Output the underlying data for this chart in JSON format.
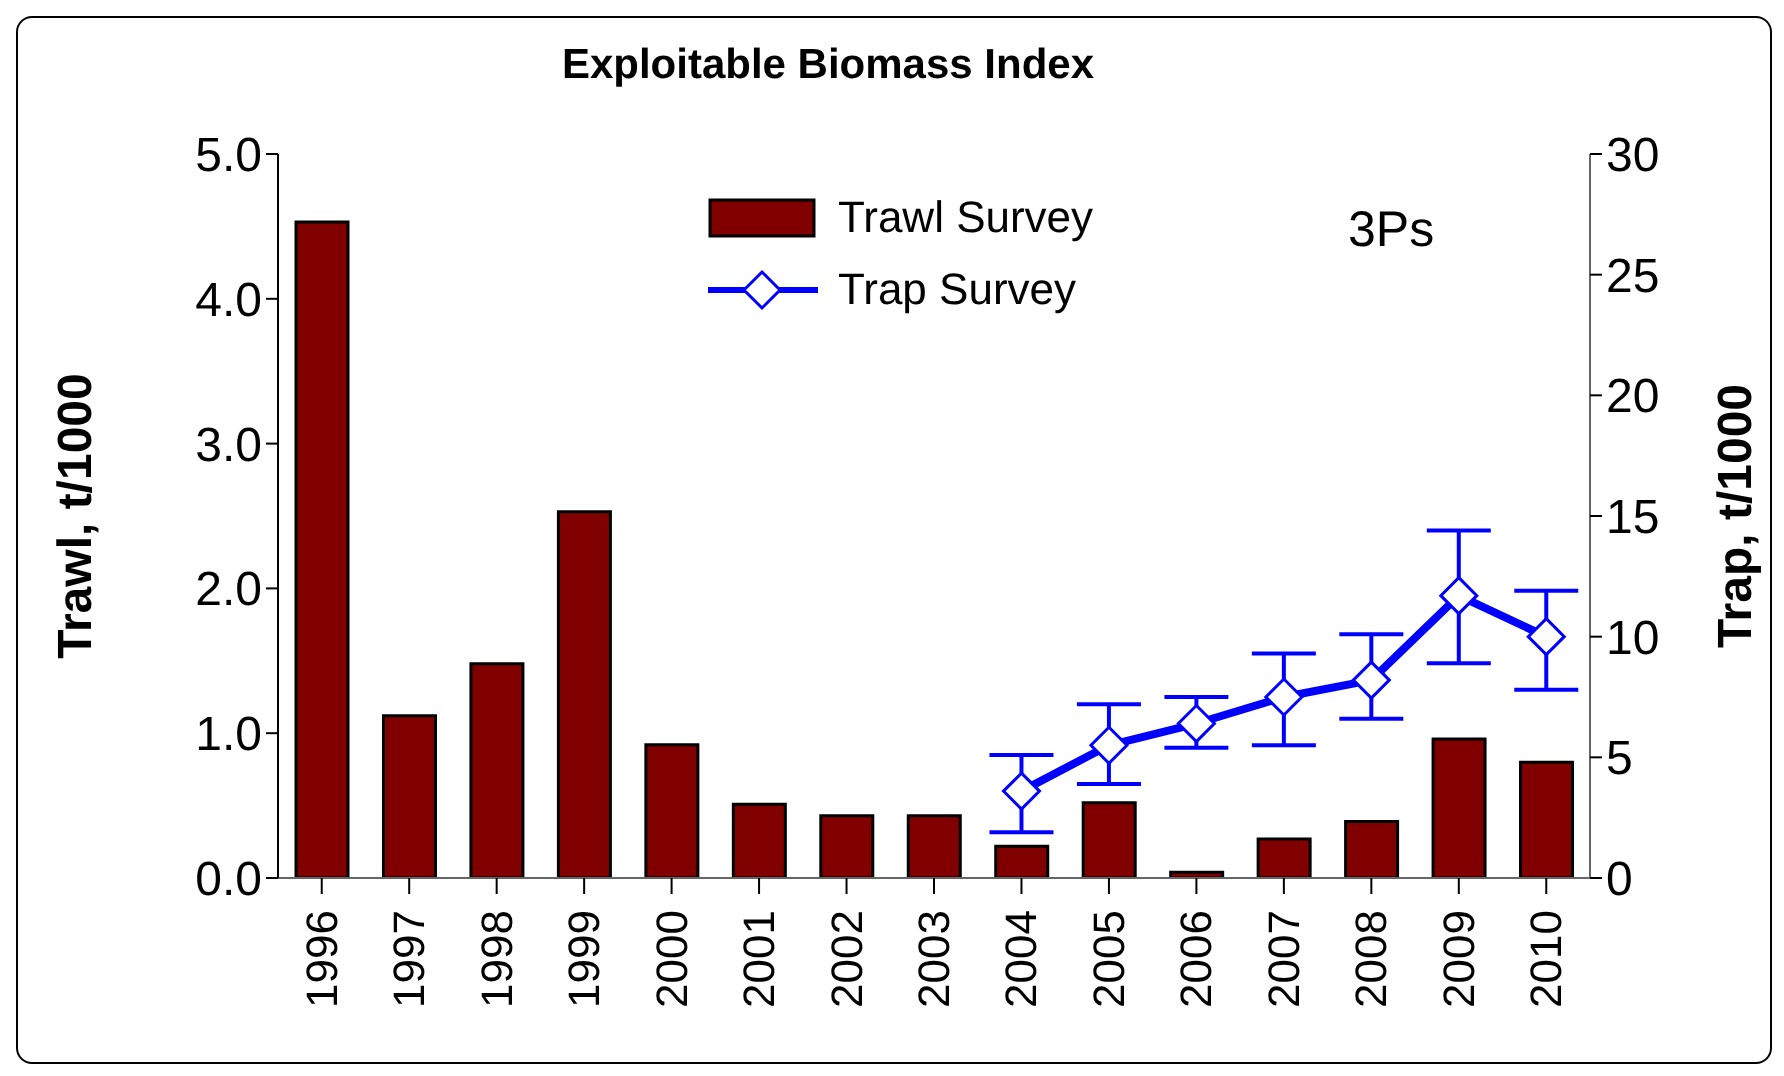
{
  "chart_data": {
    "type": "bar",
    "title": "Exploitable Biomass Index",
    "ylabel": "Trawl, t/1000",
    "y2label": "Trap, t/1000",
    "annotations": [
      "3Ps"
    ],
    "categories": [
      "1996",
      "1997",
      "1998",
      "1999",
      "2000",
      "2001",
      "2002",
      "2003",
      "2004",
      "2005",
      "2006",
      "2007",
      "2008",
      "2009",
      "2010"
    ],
    "series": [
      {
        "name": "Trawl Survey",
        "color": "#800000",
        "values": [
          4.53,
          1.12,
          1.48,
          2.53,
          0.92,
          0.51,
          0.43,
          0.43,
          0.22,
          0.52,
          0.04,
          0.27,
          0.39,
          0.96,
          0.8
        ]
      },
      {
        "name": "Trap Survey",
        "type": "line",
        "axis": "y2",
        "color": "#0000ff",
        "marker": "diamond",
        "values": [
          null,
          null,
          null,
          null,
          null,
          null,
          null,
          null,
          3.6,
          5.5,
          6.4,
          7.5,
          8.2,
          11.7,
          10.0
        ],
        "errors": [
          null,
          null,
          null,
          null,
          null,
          null,
          null,
          null,
          [
            1.9,
            5.1
          ],
          [
            3.9,
            7.2
          ],
          [
            5.4,
            7.5
          ],
          [
            5.5,
            9.3
          ],
          [
            6.6,
            10.1
          ],
          [
            8.9,
            14.4
          ],
          [
            7.8,
            11.9
          ]
        ]
      }
    ],
    "ylim": [
      0,
      5
    ],
    "yticks": [
      {
        "value": 0,
        "label": "0.0"
      },
      {
        "value": 1,
        "label": "1.0"
      },
      {
        "value": 2,
        "label": "2.0"
      },
      {
        "value": 3,
        "label": "3.0"
      },
      {
        "value": 4,
        "label": "4.0"
      },
      {
        "value": 5,
        "label": "5.0"
      }
    ],
    "y2lim": [
      0,
      30
    ],
    "y2ticks": [
      0,
      5,
      10,
      15,
      20,
      25,
      30
    ],
    "legend": "top"
  }
}
